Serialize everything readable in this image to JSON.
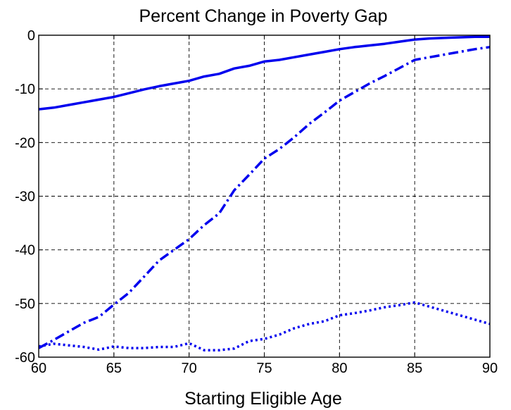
{
  "chart_data": {
    "type": "line",
    "title": "Percent Change in Poverty Gap",
    "xlabel": "Starting Eligible Age",
    "ylabel": "",
    "xlim": [
      60,
      90
    ],
    "ylim": [
      -60,
      0
    ],
    "xticks": [
      60,
      65,
      70,
      75,
      80,
      85,
      90
    ],
    "yticks": [
      0,
      -10,
      -20,
      -30,
      -40,
      -50,
      -60
    ],
    "grid": true,
    "line_color": "#0000ee",
    "series": [
      {
        "style": "solid",
        "x": [
          60,
          61,
          62,
          63,
          64,
          65,
          66,
          67,
          68,
          69,
          70,
          71,
          72,
          73,
          74,
          75,
          76,
          77,
          78,
          79,
          80,
          81,
          82,
          83,
          84,
          85,
          86,
          87,
          88,
          89,
          90
        ],
        "y": [
          -13.8,
          -13.5,
          -13.0,
          -12.5,
          -12.0,
          -11.5,
          -10.8,
          -10.1,
          -9.5,
          -9.0,
          -8.5,
          -7.7,
          -7.2,
          -6.2,
          -5.7,
          -4.9,
          -4.6,
          -4.1,
          -3.6,
          -3.1,
          -2.6,
          -2.2,
          -1.9,
          -1.6,
          -1.2,
          -0.8,
          -0.6,
          -0.5,
          -0.4,
          -0.3,
          -0.3
        ]
      },
      {
        "style": "dashdot",
        "x": [
          60,
          61,
          62,
          63,
          64,
          65,
          66,
          67,
          68,
          69,
          70,
          71,
          72,
          73,
          74,
          75,
          76,
          77,
          78,
          79,
          80,
          81,
          82,
          83,
          84,
          85,
          86,
          87,
          88,
          89,
          90
        ],
        "y": [
          -58.3,
          -56.8,
          -55.2,
          -53.6,
          -52.5,
          -50.2,
          -48.0,
          -45.0,
          -42.0,
          -40.0,
          -38.0,
          -35.4,
          -33.2,
          -28.9,
          -26.0,
          -23.0,
          -21.2,
          -19.0,
          -16.5,
          -14.4,
          -12.2,
          -10.6,
          -9.0,
          -7.6,
          -6.1,
          -4.6,
          -4.1,
          -3.6,
          -3.1,
          -2.6,
          -2.2
        ]
      },
      {
        "style": "dotted",
        "x": [
          60,
          61,
          62,
          63,
          64,
          65,
          66,
          67,
          68,
          69,
          70,
          71,
          72,
          73,
          74,
          75,
          76,
          77,
          78,
          79,
          80,
          81,
          82,
          83,
          84,
          85,
          86,
          87,
          88,
          89,
          90
        ],
        "y": [
          -58.0,
          -57.5,
          -57.8,
          -58.1,
          -58.6,
          -58.0,
          -58.3,
          -58.3,
          -58.1,
          -58.1,
          -57.4,
          -58.7,
          -58.7,
          -58.4,
          -57.0,
          -56.6,
          -55.8,
          -54.6,
          -53.8,
          -53.3,
          -52.2,
          -51.8,
          -51.3,
          -50.7,
          -50.3,
          -49.8,
          -50.6,
          -51.4,
          -52.2,
          -53.0,
          -53.8
        ]
      }
    ]
  }
}
